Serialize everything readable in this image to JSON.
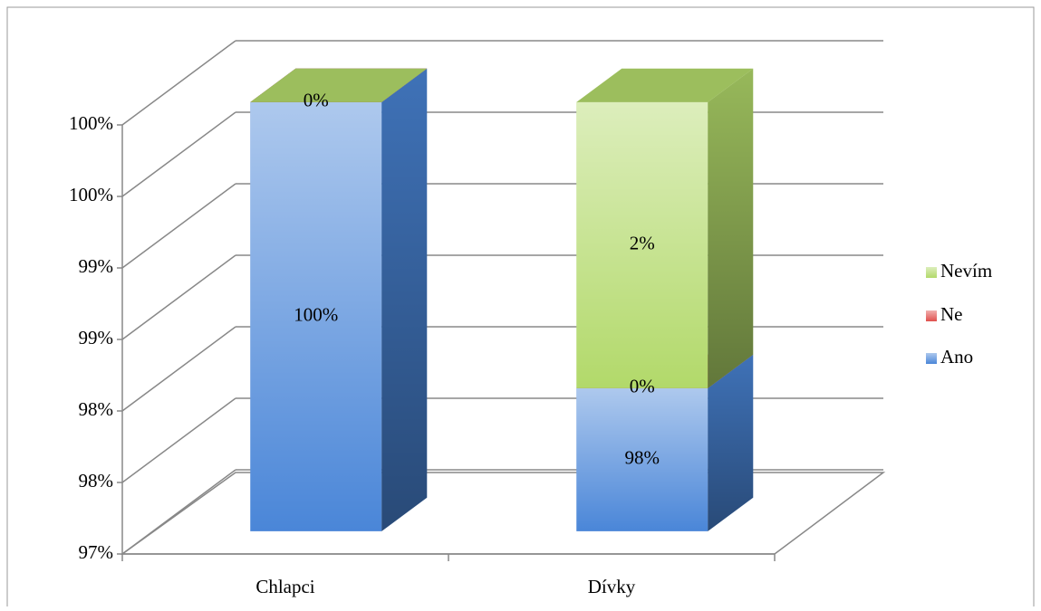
{
  "chart_data": {
    "type": "bar3d_stacked",
    "categories": [
      "Chlapci",
      "Dívky"
    ],
    "series": [
      {
        "name": "Ano",
        "color": "#4a86d8",
        "values": [
          100,
          98
        ],
        "value_labels": [
          "100%",
          "98%"
        ]
      },
      {
        "name": "Ne",
        "color": "#e0504d",
        "values": [
          0,
          0
        ],
        "value_labels": [
          null,
          "0%"
        ]
      },
      {
        "name": "Nevím",
        "color": "#b2d96a",
        "values": [
          0,
          2
        ],
        "value_labels": [
          "0%",
          "2%"
        ]
      }
    ],
    "ylim": [
      97,
      100
    ],
    "yticks": [
      {
        "value": 97,
        "label": "97%"
      },
      {
        "value": 97.5,
        "label": "98%"
      },
      {
        "value": 98,
        "label": "98%"
      },
      {
        "value": 98.5,
        "label": "99%"
      },
      {
        "value": 99,
        "label": "99%"
      },
      {
        "value": 99.5,
        "label": "100%"
      },
      {
        "value": 100,
        "label": "100%"
      }
    ],
    "grid": true,
    "legend": "right"
  }
}
